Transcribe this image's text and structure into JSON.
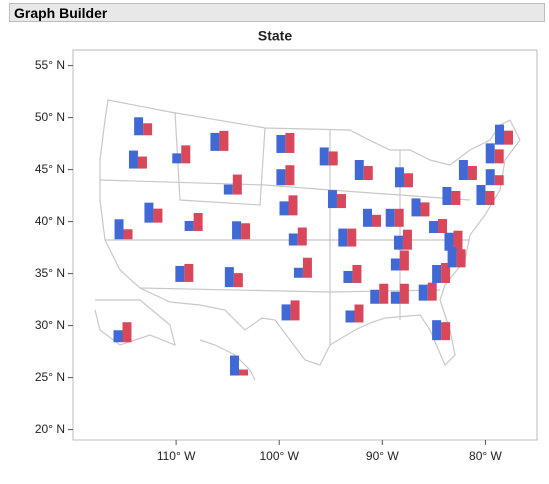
{
  "header": {
    "title": "Graph Builder"
  },
  "chart_data": {
    "type": "map-bar",
    "title": "State",
    "xlim": [
      -120,
      -75
    ],
    "ylim": [
      19,
      56.5
    ],
    "xticks": [
      {
        "value": -110,
        "label": "110° W"
      },
      {
        "value": -100,
        "label": "100° W"
      },
      {
        "value": -90,
        "label": "90° W"
      },
      {
        "value": -80,
        "label": "80° W"
      }
    ],
    "yticks": [
      {
        "value": 20,
        "label": "20° N"
      },
      {
        "value": 25,
        "label": "25° N"
      },
      {
        "value": 30,
        "label": "30° N"
      },
      {
        "value": 35,
        "label": "35° N"
      },
      {
        "value": 40,
        "label": "40° N"
      },
      {
        "value": 45,
        "label": "45° N"
      },
      {
        "value": 50,
        "label": "50° N"
      },
      {
        "value": 55,
        "label": "55° N"
      }
    ],
    "x": [
      -113.2,
      -113.7,
      -115.1,
      -112.2,
      -109.5,
      -105.8,
      -108.3,
      -109.2,
      -104.5,
      -103.7,
      -104.4,
      -99.4,
      -99.4,
      -99.1,
      -98.2,
      -97.7,
      -98.9,
      -95.2,
      -94.4,
      -93.4,
      -92.9,
      -92.7,
      -91.8,
      -91.0,
      -88.8,
      -90.3,
      -88.3,
      -88.0,
      -88.3,
      -87.9,
      -86.3,
      -85.6,
      -84.3,
      -84.3,
      -84.6,
      -83.1,
      -82.8,
      -81.7,
      -83.3,
      -80.0,
      -79.1,
      -78.2,
      -79.1,
      -115.2,
      -103.9
    ],
    "y": [
      48.3,
      45.1,
      38.3,
      39.9,
      45.6,
      46.8,
      39.1,
      34.2,
      42.6,
      38.3,
      33.7,
      46.6,
      43.5,
      40.6,
      37.7,
      34.6,
      30.5,
      45.4,
      41.3,
      37.6,
      34.1,
      30.3,
      44.0,
      39.5,
      39.5,
      32.1,
      32.1,
      37.3,
      35.3,
      43.3,
      40.5,
      32.4,
      28.6,
      34.1,
      38.9,
      37.2,
      35.6,
      44.0,
      41.6,
      41.6,
      45.6,
      47.4,
      43.5,
      28.4,
      25.2
    ],
    "series": [
      {
        "color": "#4169d6",
        "values": [
          18,
          18,
          20,
          20,
          10,
          18,
          10,
          16,
          10,
          18,
          20,
          18,
          16,
          14,
          12,
          10,
          16,
          18,
          18,
          18,
          12,
          12,
          20,
          18,
          18,
          14,
          12,
          14,
          12,
          20,
          18,
          16,
          20,
          18,
          12,
          18,
          20,
          20,
          18,
          20,
          20,
          20,
          16,
          12,
          20
        ]
      },
      {
        "color": "#d9475a",
        "values": [
          12,
          12,
          10,
          14,
          18,
          20,
          18,
          18,
          20,
          16,
          14,
          20,
          20,
          20,
          18,
          20,
          20,
          14,
          14,
          18,
          18,
          18,
          14,
          12,
          18,
          20,
          20,
          20,
          20,
          14,
          14,
          18,
          18,
          20,
          14,
          20,
          18,
          14,
          14,
          14,
          14,
          14,
          10,
          20,
          6
        ]
      }
    ]
  }
}
